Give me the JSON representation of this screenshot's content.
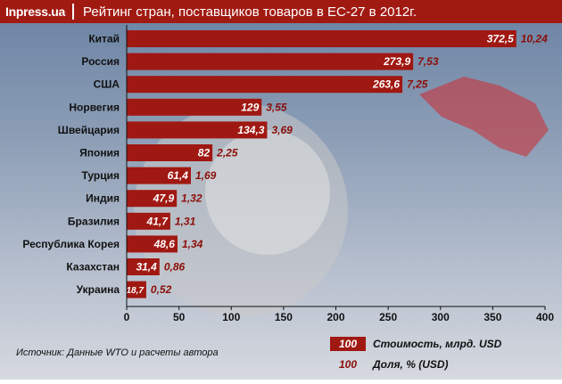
{
  "header": {
    "logo": "Inpress.ua",
    "title": "Рейтинг стран, поставщиков товаров в ЕС-27 в 2012г."
  },
  "colors": {
    "bar": "#a01812",
    "share_text": "#8b0d07",
    "header": "#a11a12"
  },
  "chart_data": {
    "type": "bar",
    "orientation": "horizontal",
    "categories": [
      "Китай",
      "Россия",
      "США",
      "Норвегия",
      "Швейцария",
      "Япония",
      "Турция",
      "Индия",
      "Бразилия",
      "Республика Корея",
      "Казахстан",
      "Украина"
    ],
    "series": [
      {
        "name": "Стоимость, млрд. USD",
        "values": [
          372.5,
          273.9,
          263.6,
          129,
          134.3,
          82,
          61.4,
          47.9,
          41.7,
          48.6,
          31.4,
          18.7
        ],
        "labels": [
          "372,5",
          "273,9",
          "263,6",
          "129",
          "134,3",
          "82",
          "61,4",
          "47,9",
          "41,7",
          "48,6",
          "31,4",
          "18,7"
        ]
      },
      {
        "name": "Доля, % (USD)",
        "values": [
          10.24,
          7.53,
          7.25,
          3.55,
          3.69,
          2.25,
          1.69,
          1.32,
          1.31,
          1.34,
          0.86,
          0.52
        ],
        "labels": [
          "10,24",
          "7,53",
          "7,25",
          "3,55",
          "3,69",
          "2,25",
          "1,69",
          "1,32",
          "1,31",
          "1,34",
          "0,86",
          "0,52"
        ]
      }
    ],
    "xlim": [
      0,
      400
    ],
    "xticks": [
      "0",
      "50",
      "100",
      "150",
      "200",
      "250",
      "300",
      "350",
      "400"
    ],
    "grid": false
  },
  "footer": {
    "source": "Источник: Данные WTO и расчеты автора",
    "legend": [
      {
        "sample": "100",
        "label": "Стоимость, млрд. USD"
      },
      {
        "sample": "100",
        "label": "Доля, % (USD)"
      }
    ]
  }
}
